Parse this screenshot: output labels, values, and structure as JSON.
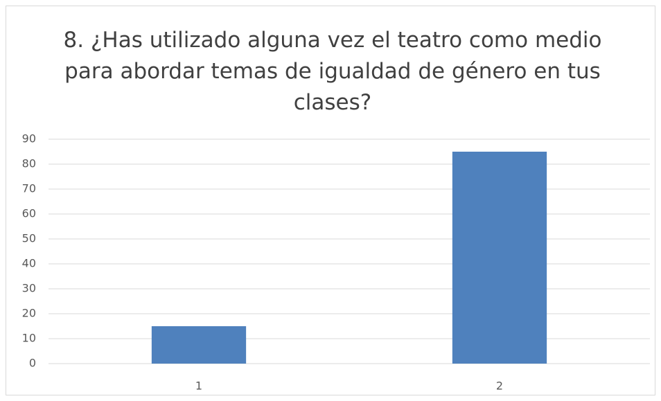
{
  "chart_data": {
    "type": "bar",
    "title": "8. ¿Has utilizado alguna vez el teatro como medio para abordar temas de igualdad de género en tus clases?",
    "categories": [
      "1",
      "2"
    ],
    "values": [
      15,
      85
    ],
    "color": "#4f81bd",
    "ylim": [
      0,
      90
    ],
    "yticks": [
      0,
      10,
      20,
      30,
      40,
      50,
      60,
      70,
      80,
      90
    ],
    "grid": true
  }
}
